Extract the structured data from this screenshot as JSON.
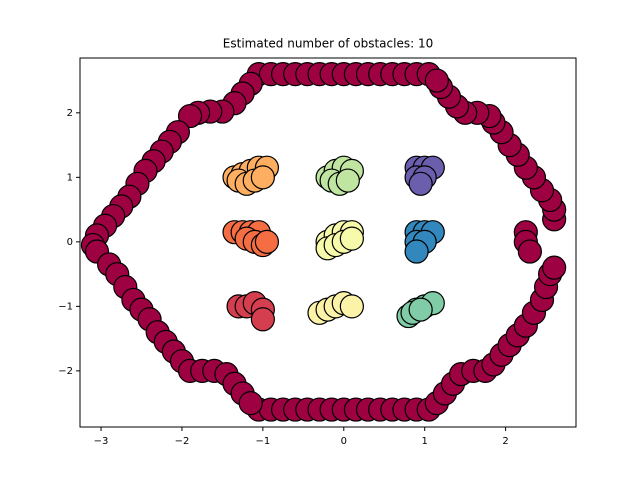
{
  "chart_data": {
    "type": "scatter",
    "title": "Estimated number of obstacles: 10",
    "xlim": [
      -3.26,
      2.87
    ],
    "ylim": [
      -2.87,
      2.85
    ],
    "xticks": [
      {
        "value": -3,
        "label": "−3"
      },
      {
        "value": -2,
        "label": "−2"
      },
      {
        "value": -1,
        "label": "−1"
      },
      0,
      1,
      2
    ],
    "yticks": [
      {
        "value": -2,
        "label": "−2"
      },
      {
        "value": -1,
        "label": "−1"
      },
      0,
      1,
      2
    ],
    "series": [
      {
        "color": "#9e0142",
        "x": [
          -1.05,
          -0.9,
          -0.75,
          -0.6,
          -0.45,
          -0.3,
          -0.15,
          0,
          0.15,
          0.3,
          0.45,
          0.6,
          0.75,
          0.9,
          1.05,
          -1.05,
          -0.9,
          -0.75,
          -0.6,
          -0.45,
          -0.3,
          -0.15,
          0,
          0.15,
          0.3,
          0.45,
          0.6,
          0.75,
          0.9,
          1.05,
          -1.15,
          -1.25,
          -1.35,
          -1.5,
          -1.65,
          -1.8,
          -1.9,
          -2.05,
          -2.15,
          -2.25,
          -2.35,
          -2.45,
          -2.55,
          -2.65,
          -2.75,
          -2.85,
          -2.95,
          -3.05,
          -3.1,
          -3.05,
          -2.9,
          -2.8,
          -2.7,
          -2.6,
          -2.5,
          -2.4,
          -2.3,
          -2.2,
          -2.1,
          -2.0,
          -1.9,
          -1.75,
          -1.6,
          -1.45,
          -1.35,
          -1.25,
          -1.15,
          1.15,
          1.25,
          1.35,
          1.45,
          1.6,
          1.75,
          1.85,
          1.95,
          2.05,
          2.15,
          2.25,
          2.35,
          2.45,
          2.5,
          2.55,
          2.6,
          2.25,
          2.25,
          2.3,
          2.6,
          2.6,
          2.55,
          2.45,
          2.35,
          2.25,
          2.15,
          2.05,
          1.95,
          1.85,
          1.8,
          1.65,
          1.5,
          1.4,
          1.3,
          1.2,
          1.15
        ],
        "y": [
          2.6,
          2.6,
          2.6,
          2.6,
          2.6,
          2.6,
          2.6,
          2.6,
          2.6,
          2.6,
          2.6,
          2.6,
          2.6,
          2.6,
          2.6,
          -2.6,
          -2.6,
          -2.6,
          -2.6,
          -2.6,
          -2.6,
          -2.6,
          -2.6,
          -2.6,
          -2.6,
          -2.6,
          -2.6,
          -2.6,
          -2.6,
          -2.6,
          2.45,
          2.3,
          2.15,
          2.02,
          2.02,
          2.0,
          1.95,
          1.7,
          1.55,
          1.4,
          1.25,
          1.1,
          0.9,
          0.7,
          0.55,
          0.4,
          0.25,
          0.1,
          -0.05,
          -0.15,
          -0.35,
          -0.5,
          -0.7,
          -0.9,
          -1.05,
          -1.2,
          -1.4,
          -1.55,
          -1.7,
          -1.85,
          -2.0,
          -2.0,
          -2.0,
          -2.05,
          -2.2,
          -2.35,
          -2.5,
          -2.5,
          -2.35,
          -2.2,
          -2.05,
          -2.0,
          -2.0,
          -1.9,
          -1.75,
          -1.6,
          -1.45,
          -1.3,
          -1.1,
          -0.9,
          -0.7,
          -0.5,
          -0.4,
          0.15,
          0.0,
          -0.15,
          0.35,
          0.5,
          0.65,
          0.8,
          1.0,
          1.15,
          1.35,
          1.5,
          1.7,
          1.85,
          1.95,
          2.0,
          2.0,
          2.1,
          2.25,
          2.4,
          2.5
        ]
      },
      {
        "color": "#fdae61",
        "x": [
          -1.35,
          -1.25,
          -1.15,
          -1.05,
          -0.95,
          -1.3,
          -1.2,
          -1.1,
          -1.0
        ],
        "y": [
          1.0,
          1.05,
          1.1,
          1.15,
          1.15,
          0.95,
          0.9,
          0.95,
          1.0
        ]
      },
      {
        "color": "#bfe5a0",
        "x": [
          -0.2,
          -0.1,
          0.0,
          0.1,
          -0.15,
          -0.05,
          0.05
        ],
        "y": [
          1.0,
          1.1,
          1.15,
          1.1,
          0.95,
          0.9,
          0.95
        ]
      },
      {
        "color": "#6a5ead",
        "x": [
          0.9,
          1.0,
          1.1,
          0.9,
          1.0,
          0.95
        ],
        "y": [
          1.15,
          1.15,
          1.15,
          1.0,
          1.0,
          0.9
        ]
      },
      {
        "color": "#f46d43",
        "x": [
          -1.35,
          -1.25,
          -1.15,
          -1.05,
          -1.2,
          -1.1,
          -1.0,
          -0.95
        ],
        "y": [
          0.15,
          0.15,
          0.15,
          0.15,
          0.05,
          0.0,
          -0.05,
          0.0
        ]
      },
      {
        "color": "#f6faaa",
        "x": [
          -0.2,
          -0.1,
          0.0,
          0.1,
          -0.2,
          -0.1,
          0.0,
          0.1
        ],
        "y": [
          0.0,
          0.1,
          0.15,
          0.15,
          -0.1,
          -0.05,
          0.0,
          0.05
        ]
      },
      {
        "color": "#3288bd",
        "x": [
          0.9,
          1.0,
          1.1,
          0.9,
          1.0,
          0.9
        ],
        "y": [
          0.15,
          0.15,
          0.15,
          0.0,
          0.0,
          -0.15
        ]
      },
      {
        "color": "#d53e4f",
        "x": [
          -1.3,
          -1.2,
          -1.1,
          -1.0,
          -1.0
        ],
        "y": [
          -1.0,
          -1.0,
          -0.95,
          -1.05,
          -1.2
        ]
      },
      {
        "color": "#fdf3a8",
        "x": [
          -0.3,
          -0.2,
          -0.1,
          0.0,
          0.1
        ],
        "y": [
          -1.1,
          -1.05,
          -1.0,
          -0.95,
          -1.0
        ]
      },
      {
        "color": "#7fcca6",
        "x": [
          0.8,
          0.9,
          1.0,
          1.1,
          0.85,
          0.95
        ],
        "y": [
          -1.15,
          -1.05,
          -1.0,
          -0.95,
          -1.1,
          -1.05
        ]
      }
    ]
  }
}
